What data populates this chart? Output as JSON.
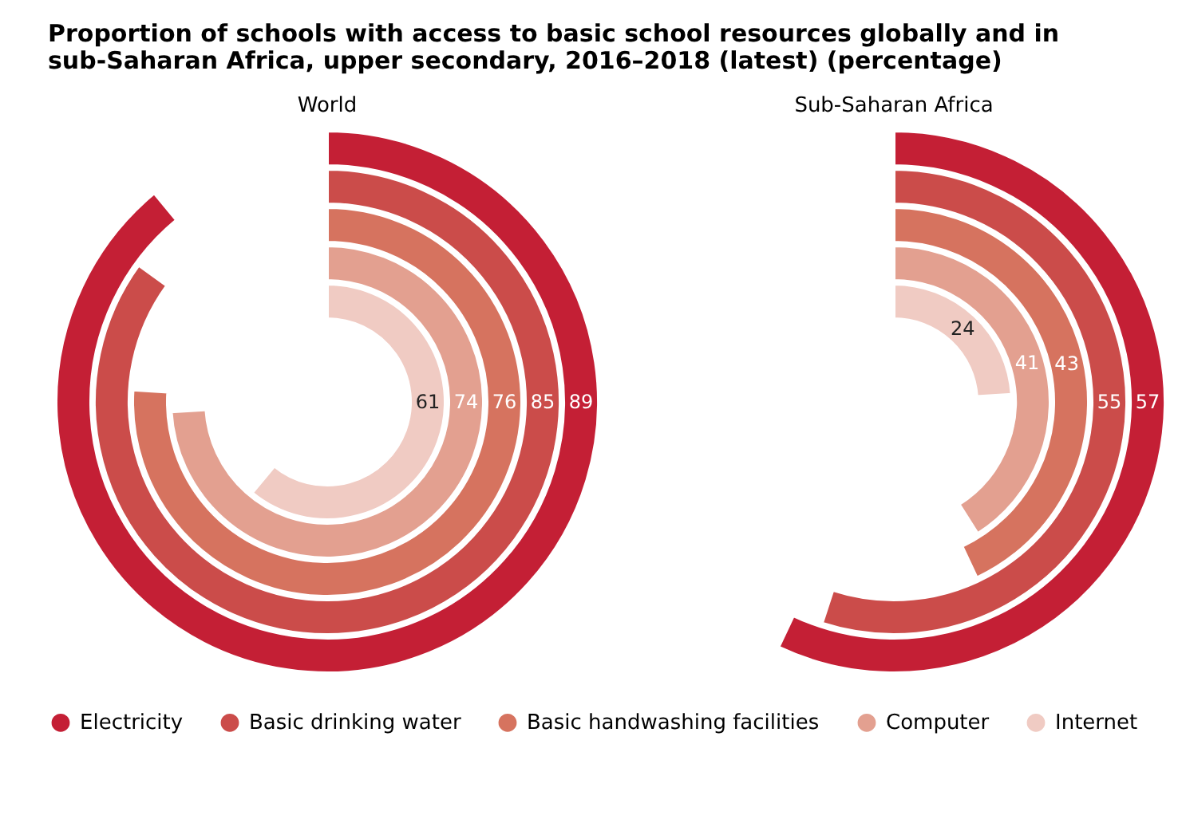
{
  "chart_data": {
    "type": "other",
    "title": "Proportion of schools with access to basic school resources globally and in sub-Saharan Africa, upper secondary, 2016–2018 (latest) (percentage)",
    "categories": [
      "World",
      "Sub-Saharan Africa"
    ],
    "series": [
      {
        "name": "Electricity",
        "color": "#c41f35",
        "values": [
          89,
          57
        ]
      },
      {
        "name": "Basic drinking water",
        "color": "#cb4c4a",
        "values": [
          85,
          55
        ]
      },
      {
        "name": "Basic handwashing facilities",
        "color": "#d6735f",
        "values": [
          76,
          43
        ]
      },
      {
        "name": "Computer",
        "color": "#e3a090",
        "values": [
          74,
          41
        ]
      },
      {
        "name": "Internet",
        "color": "#f0cbc3",
        "values": [
          61,
          24
        ]
      }
    ],
    "data_labels": true,
    "legend": "bottom"
  }
}
